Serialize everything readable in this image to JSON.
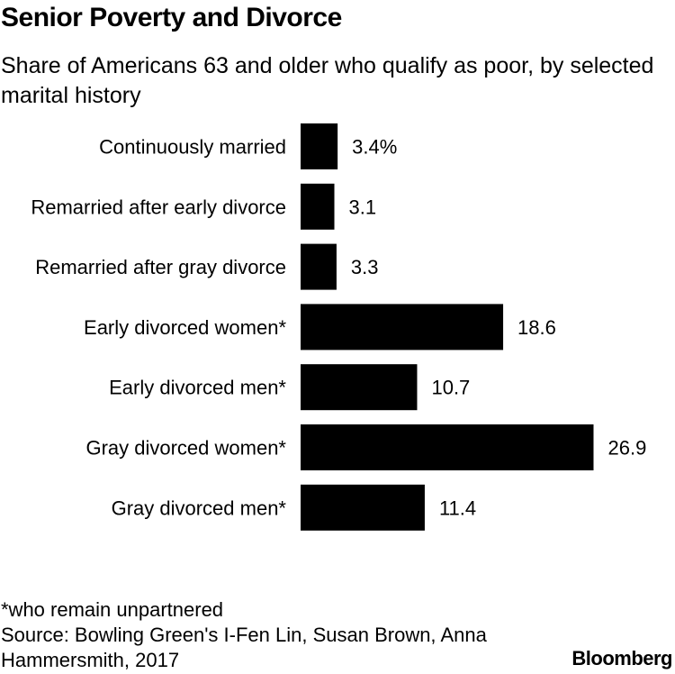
{
  "title": "Senior Poverty and Divorce",
  "subtitle": "Share of Americans 63 and older who qualify as poor, by selected marital history",
  "chart_data": {
    "type": "bar",
    "orientation": "horizontal",
    "categories": [
      "Continuously married",
      "Remarried after early divorce",
      "Remarried after gray divorce",
      "Early divorced women*",
      "Early divorced men*",
      "Gray divorced women*",
      "Gray divorced men*"
    ],
    "values": [
      3.4,
      3.1,
      3.3,
      18.6,
      10.7,
      26.9,
      11.4
    ],
    "value_labels": [
      "3.4%",
      "3.1",
      "3.3",
      "18.6",
      "10.7",
      "26.9",
      "11.4"
    ],
    "bar_color": "#000000",
    "grid": false,
    "legend": "none"
  },
  "footnote": "*who remain unpartnered",
  "source": "Source: Bowling Green's I-Fen Lin, Susan Brown, Anna Hammersmith, 2017",
  "brand": "Bloomberg"
}
